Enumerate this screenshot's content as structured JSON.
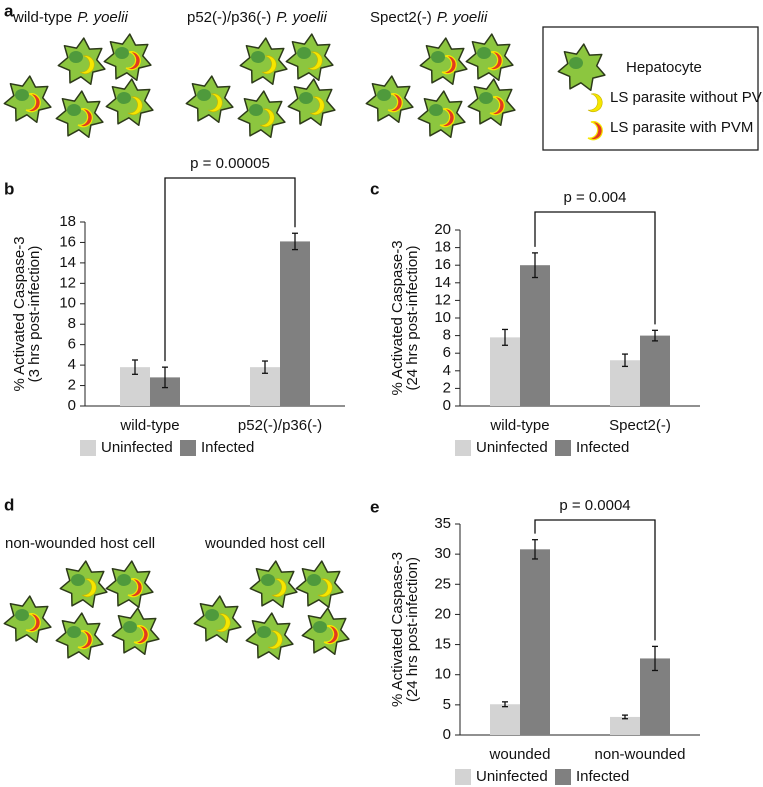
{
  "panel_letters": [
    "a",
    "b",
    "c",
    "d",
    "e"
  ],
  "diagram_a": {
    "groups": [
      {
        "label": "wild-type",
        "species": "P. yoelii"
      },
      {
        "label": "p52(-)/p36(-)",
        "species": "P. yoelii"
      },
      {
        "label": "Spect2(-)",
        "species": "P. yoelii"
      }
    ],
    "legend": [
      "Hepatocyte",
      "LS parasite without PVM",
      "LS parasite with PVM"
    ]
  },
  "diagram_d": {
    "groups": [
      "non-wounded host cell",
      "wounded host cell"
    ]
  },
  "chart_data": [
    {
      "type": "bar",
      "ylabel": [
        "% Activated Caspase-3",
        "(3 hrs post-infection)"
      ],
      "categories": [
        "wild-type",
        "p52(-)/p36(-)"
      ],
      "series": [
        {
          "name": "Uninfected",
          "color": "#d3d3d3",
          "values": [
            3.8,
            3.8
          ],
          "errors": [
            0.7,
            0.6
          ]
        },
        {
          "name": "Infected",
          "color": "#808080",
          "values": [
            2.8,
            16.1
          ],
          "errors": [
            1.0,
            0.8
          ]
        }
      ],
      "ylim": [
        0,
        18
      ],
      "yticks": [
        0,
        2,
        4,
        6,
        8,
        10,
        12,
        14,
        16,
        18
      ],
      "annotation": "p = 0.00005"
    },
    {
      "type": "bar",
      "ylabel": [
        "% Activated Caspase-3",
        "(24 hrs post-infection)"
      ],
      "categories": [
        "wild-type",
        "Spect2(-)"
      ],
      "series": [
        {
          "name": "Uninfected",
          "color": "#d3d3d3",
          "values": [
            7.8,
            5.2
          ],
          "errors": [
            0.9,
            0.7
          ]
        },
        {
          "name": "Infected",
          "color": "#808080",
          "values": [
            16,
            8
          ],
          "errors": [
            1.4,
            0.6
          ]
        }
      ],
      "ylim": [
        0,
        20
      ],
      "yticks": [
        0,
        2,
        4,
        6,
        8,
        10,
        12,
        14,
        16,
        18,
        20
      ],
      "annotation": "p = 0.004"
    },
    {
      "type": "bar",
      "ylabel": [
        "% Activated Caspase-3",
        "(24 hrs post-infection)"
      ],
      "categories": [
        "wounded",
        "non-wounded"
      ],
      "series": [
        {
          "name": "Uninfected",
          "color": "#d3d3d3",
          "values": [
            5.1,
            3.0
          ],
          "errors": [
            0.4,
            0.3
          ]
        },
        {
          "name": "Infected",
          "color": "#808080",
          "values": [
            30.8,
            12.7
          ],
          "errors": [
            1.6,
            2.0
          ]
        }
      ],
      "ylim": [
        0,
        35
      ],
      "yticks": [
        0,
        5,
        10,
        15,
        20,
        25,
        30,
        35
      ],
      "annotation": "p = 0.0004"
    }
  ]
}
